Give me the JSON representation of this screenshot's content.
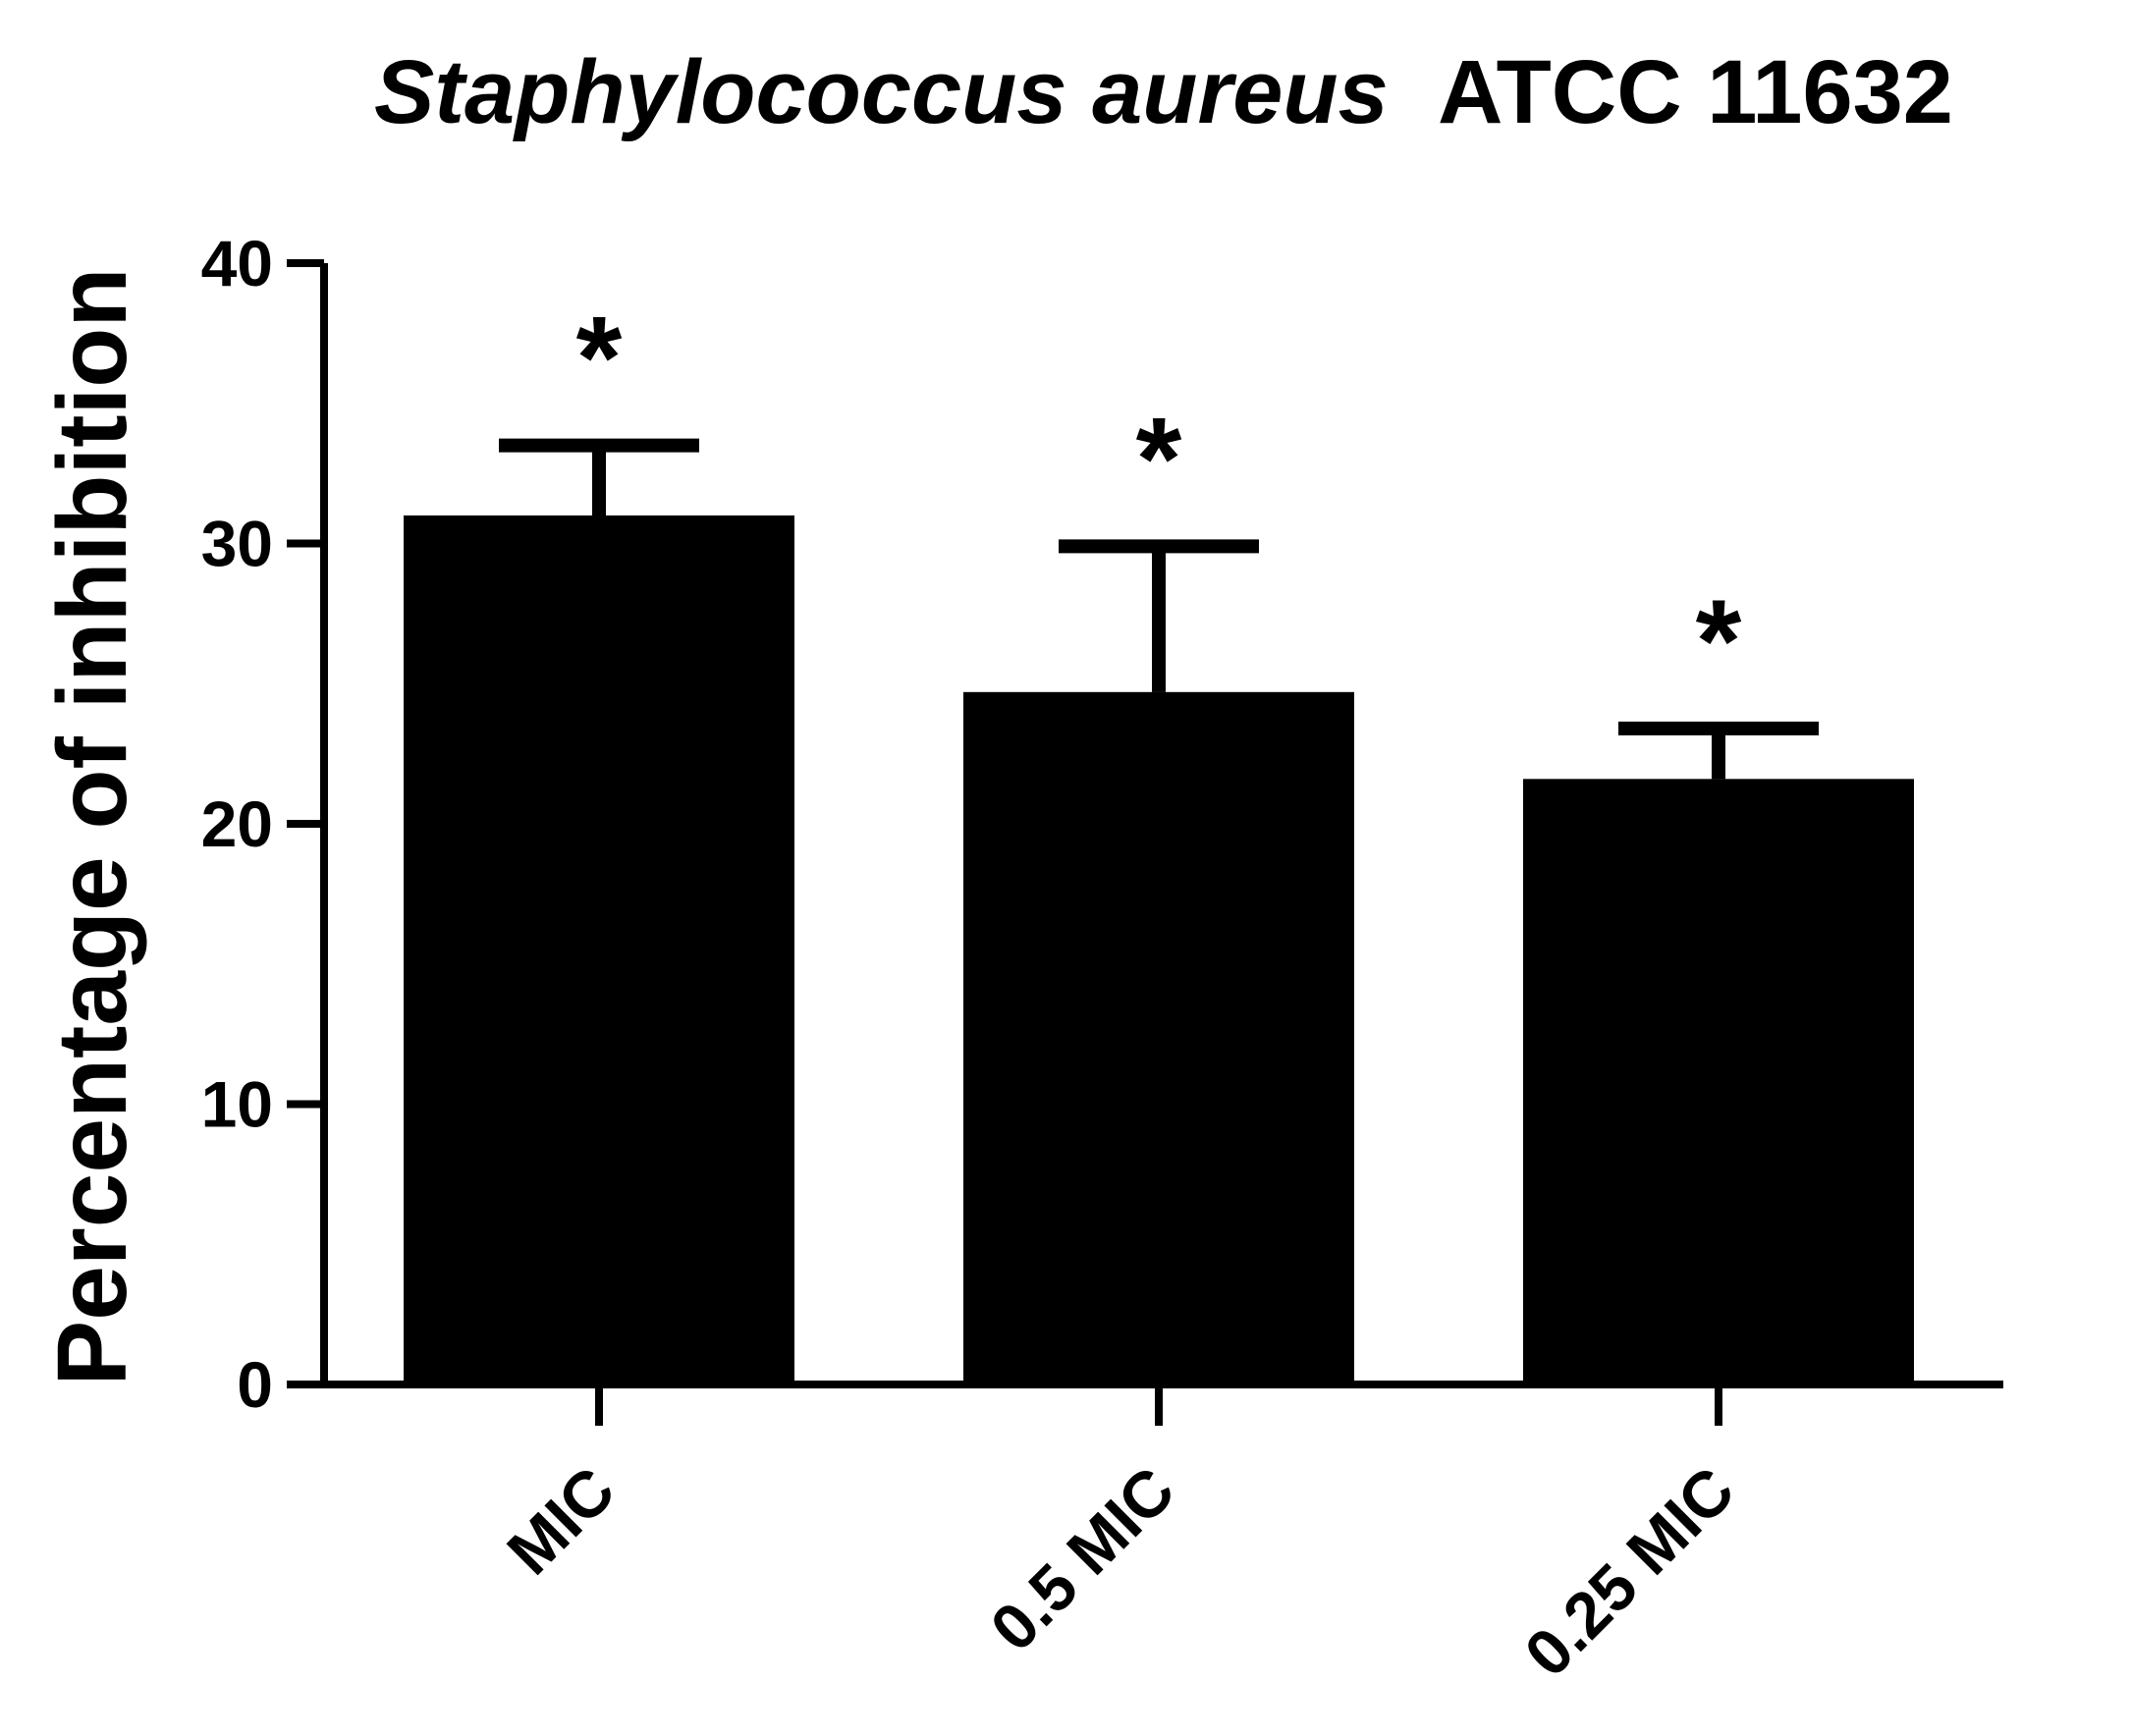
{
  "chart_data": {
    "type": "bar",
    "title": {
      "italic": "Staphylococcus aureus",
      "plain": "ATCC 11632"
    },
    "xlabel": "",
    "ylabel": "Percentage of inhibition",
    "categories": [
      "MIC",
      "0.5 MIC",
      "0.25 MIC"
    ],
    "values": [
      31,
      24.7,
      21.6
    ],
    "error": [
      2.5,
      5.2,
      1.8
    ],
    "significance": [
      "*",
      "*",
      "*"
    ],
    "ylim": [
      0,
      40
    ],
    "yticks": [
      0,
      10,
      20,
      30,
      40
    ],
    "grid": false,
    "legend": "none",
    "colors": {
      "bar": "#000000",
      "axis": "#000000"
    }
  }
}
